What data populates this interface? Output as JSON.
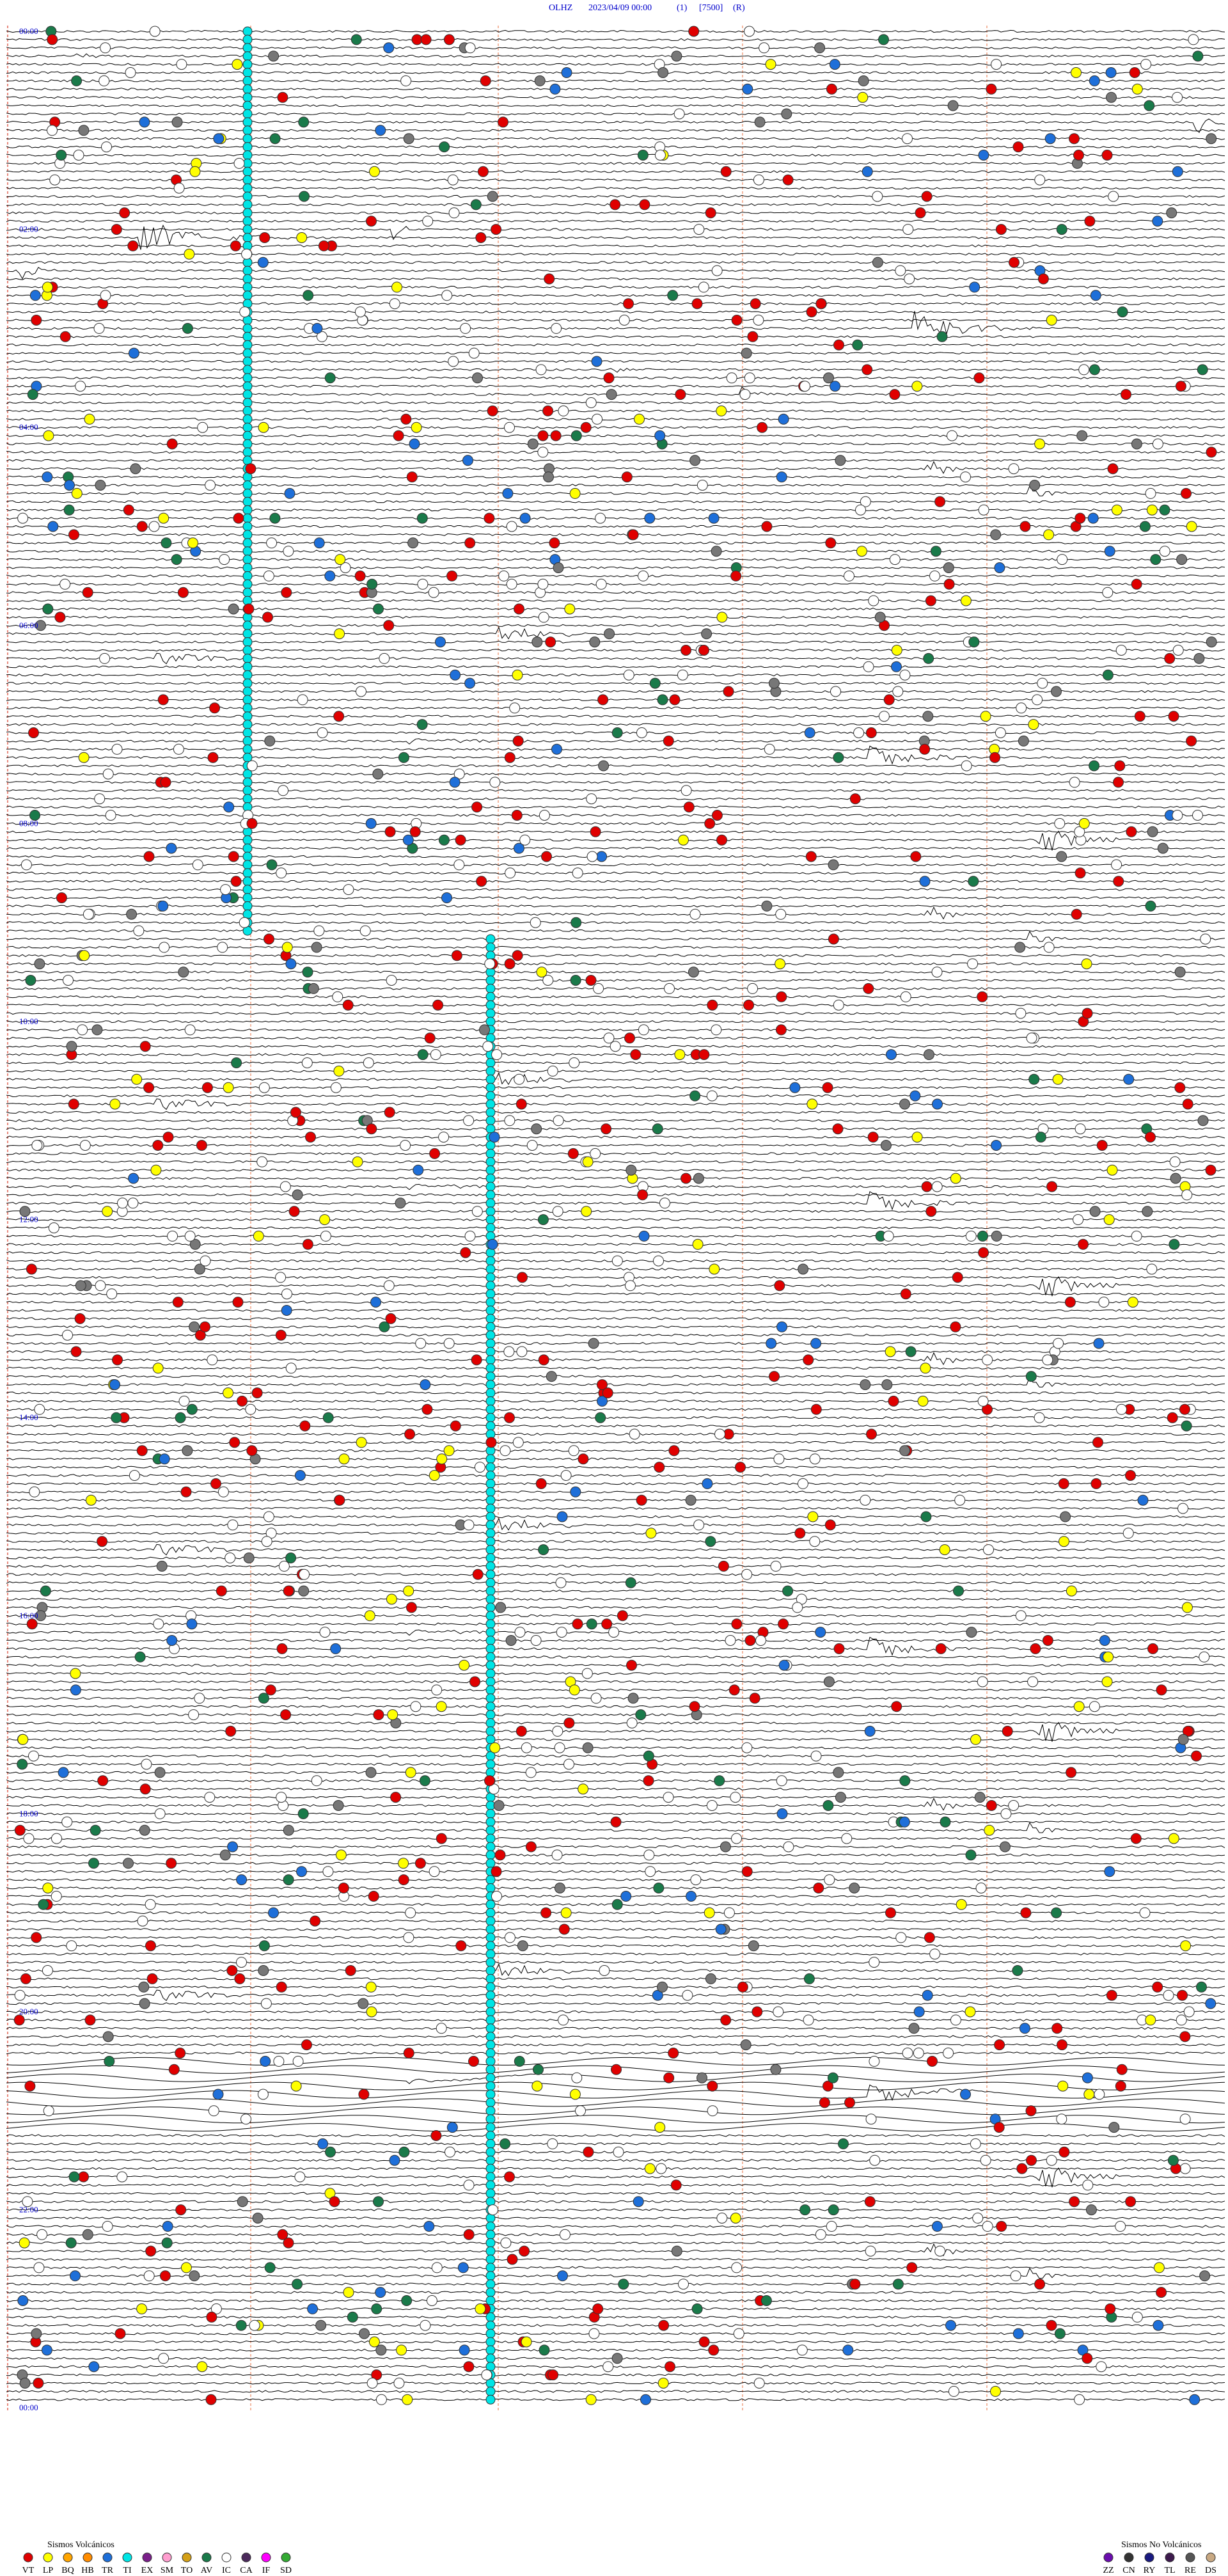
{
  "header": {
    "station": "OLHZ",
    "date": "2023/04/09 00:00",
    "channel": "(1)",
    "scale": "[7500]",
    "mode": "(R)"
  },
  "hour_labels": [
    "00:00",
    "02:00",
    "04:00",
    "06:00",
    "08:00",
    "10:00",
    "12:00",
    "14:00",
    "16:00",
    "18:00",
    "20:00",
    "22:00",
    "00:00"
  ],
  "legend": {
    "volcanic": {
      "title": "Sismos Volcánicos",
      "items": [
        {
          "code": "VT",
          "color": "#e00000"
        },
        {
          "code": "LP",
          "color": "#ffff00"
        },
        {
          "code": "BQ",
          "color": "#ffa500"
        },
        {
          "code": "HB",
          "color": "#ff8c00"
        },
        {
          "code": "TR",
          "color": "#1e6fd9"
        },
        {
          "code": "TI",
          "color": "#00e5e5"
        },
        {
          "code": "EX",
          "color": "#7a1f8a"
        },
        {
          "code": "SM",
          "color": "#ff9ecf"
        },
        {
          "code": "TO",
          "color": "#d4a017"
        },
        {
          "code": "AV",
          "color": "#1a7a4a"
        },
        {
          "code": "IC",
          "color": "#ffffff"
        },
        {
          "code": "CA",
          "color": "#4b2a5c"
        },
        {
          "code": "IF",
          "color": "#ff00ff"
        },
        {
          "code": "SD",
          "color": "#33aa33"
        }
      ]
    },
    "non_volcanic": {
      "title": "Sismos No Volcánicos",
      "items": [
        {
          "code": "ZZ",
          "color": "#6a0dad"
        },
        {
          "code": "CN",
          "color": "#333333"
        },
        {
          "code": "RY",
          "color": "#1a1a80"
        },
        {
          "code": "TL",
          "color": "#3d1a4d"
        },
        {
          "code": "RE",
          "color": "#555555"
        },
        {
          "code": "DS",
          "color": "#c8a882"
        }
      ]
    }
  }
}
